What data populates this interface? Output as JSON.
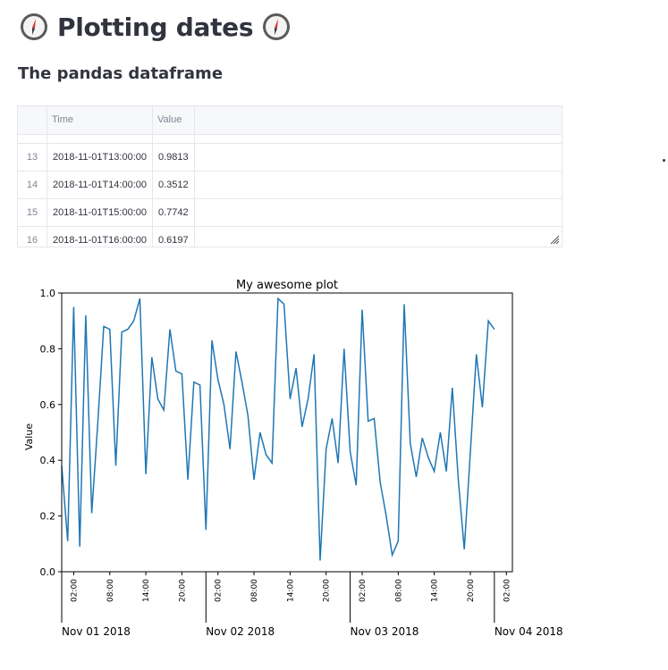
{
  "page": {
    "title": "Plotting dates",
    "emoji_icon": "compass-icon",
    "subheader": "The pandas dataframe"
  },
  "dataframe": {
    "columns": [
      "",
      "Time",
      "Value"
    ],
    "rows": [
      {
        "index": "13",
        "time": "2018-11-01T13:00:00",
        "value": "0.9813"
      },
      {
        "index": "14",
        "time": "2018-11-01T14:00:00",
        "value": "0.3512"
      },
      {
        "index": "15",
        "time": "2018-11-01T15:00:00",
        "value": "0.7742"
      },
      {
        "index": "16",
        "time": "2018-11-01T16:00:00",
        "value": "0.6197"
      }
    ]
  },
  "chart_data": {
    "type": "line",
    "title": "My awesome plot",
    "xlabel": "",
    "ylabel": "Value",
    "ylim": [
      0.0,
      1.0
    ],
    "yticks": [
      "0.0",
      "0.2",
      "0.4",
      "0.6",
      "0.8",
      "1.0"
    ],
    "x_hour_ticks": [
      "02:00",
      "08:00",
      "14:00",
      "20:00",
      "02:00",
      "08:00",
      "14:00",
      "20:00",
      "02:00",
      "08:00",
      "14:00",
      "20:00",
      "02:00"
    ],
    "x_day_ticks": [
      "Nov 01 2018",
      "Nov 02 2018",
      "Nov 03 2018",
      "Nov 04 2018"
    ],
    "x_start_hour": 0,
    "x_end_hour": 75,
    "line_color": "#1f77b4",
    "series": [
      {
        "name": "Value",
        "values": [
          0.38,
          0.11,
          0.95,
          0.09,
          0.92,
          0.21,
          0.53,
          0.88,
          0.87,
          0.38,
          0.86,
          0.87,
          0.9,
          0.98,
          0.35,
          0.77,
          0.62,
          0.58,
          0.87,
          0.72,
          0.71,
          0.33,
          0.68,
          0.67,
          0.15,
          0.83,
          0.69,
          0.6,
          0.44,
          0.79,
          0.68,
          0.56,
          0.33,
          0.5,
          0.42,
          0.39,
          0.98,
          0.96,
          0.62,
          0.73,
          0.52,
          0.62,
          0.78,
          0.04,
          0.44,
          0.55,
          0.39,
          0.8,
          0.43,
          0.31,
          0.94,
          0.54,
          0.55,
          0.32,
          0.2,
          0.06,
          0.11,
          0.96,
          0.46,
          0.34,
          0.48,
          0.41,
          0.36,
          0.5,
          0.36,
          0.66,
          0.33,
          0.08,
          0.43,
          0.78,
          0.59,
          0.9,
          0.87
        ]
      }
    ]
  }
}
